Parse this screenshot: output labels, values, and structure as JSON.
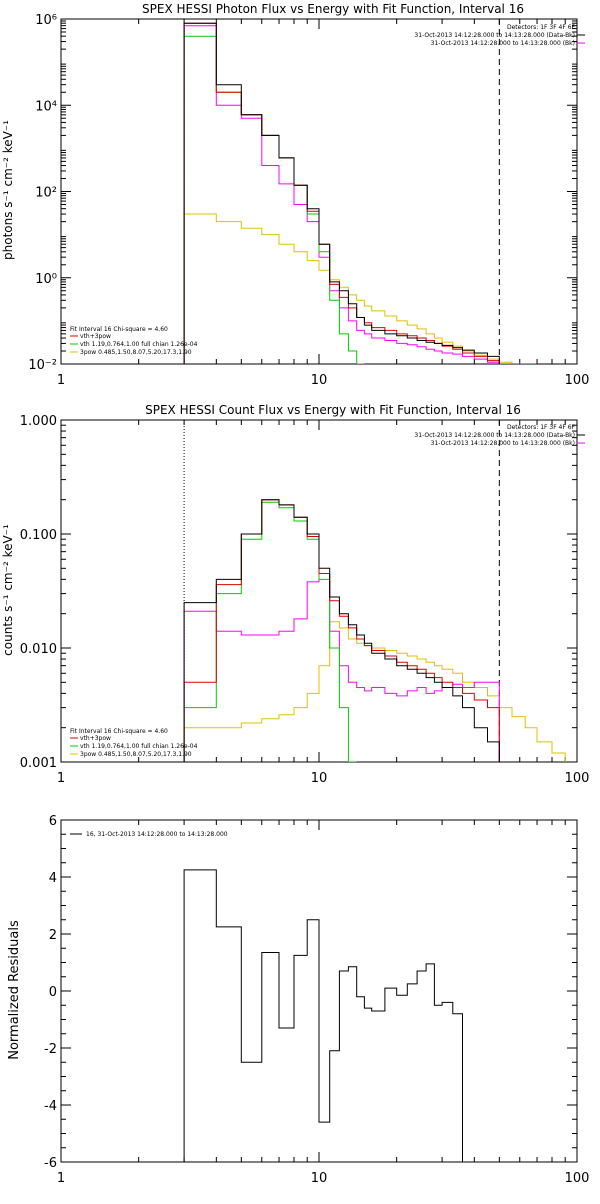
{
  "chart_data": [
    {
      "type": "line",
      "title": "SPEX HESSI Photon Flux vs Energy with Fit Function, Interval 16",
      "xlabel": "",
      "ylabel": "photons s⁻¹ cm⁻² keV⁻¹",
      "xscale": "log",
      "yscale": "log",
      "xlim": [
        1,
        100
      ],
      "ylim": [
        0.01,
        1000000
      ],
      "x_ticks": [
        1,
        10,
        100
      ],
      "x_tick_labels": [
        "1",
        "10",
        "100"
      ],
      "y_ticks": [
        0.01,
        1,
        100,
        10000,
        1000000
      ],
      "y_tick_labels": [
        "10⁻²",
        "10⁰",
        "10²",
        "10⁴",
        "10⁶"
      ],
      "header_lines": [
        "Detectors: 1F 3F 4F 6F",
        "31-Oct-2013 14:12:28.000 to 14:13:28.000 (Data-Bk)",
        "31-Oct-2013 14:12:28.000 to 14:13:28.000 (Bk)"
      ],
      "annotations": [
        "Fit Interval 16   Chi-square = 4.60",
        "vth+3pow",
        "vth 1.19,0.764,1.00  full chian 1.26e-04",
        "3pow 0.485,1.50,8.07,5.20,17.3,1.90"
      ],
      "vlines": [
        {
          "x": 3,
          "style": "dotted"
        },
        {
          "x": 50,
          "style": "dashed"
        }
      ],
      "energy_edges": [
        3,
        4,
        5,
        6,
        7,
        8,
        9,
        10,
        11,
        12,
        13,
        14,
        15,
        16,
        18,
        20,
        22,
        24,
        26,
        28,
        30,
        33,
        36,
        40,
        45,
        50,
        56,
        63,
        70
      ],
      "series": [
        {
          "name": "Data-Bk",
          "color": "#000000",
          "values": [
            800000,
            30000,
            6000,
            2000,
            600,
            140,
            40,
            6,
            0.8,
            0.5,
            0.25,
            0.12,
            0.08,
            0.06,
            0.05,
            0.045,
            0.04,
            0.035,
            0.032,
            0.03,
            0.027,
            0.024,
            0.021,
            0.018,
            0.015
          ]
        },
        {
          "name": "vth+3pow",
          "color": "#e00000",
          "values": [
            800000,
            20000,
            6000,
            2000,
            600,
            140,
            35,
            6,
            0.7,
            0.35,
            0.2,
            0.12,
            0.09,
            0.07,
            0.06,
            0.05,
            0.045,
            0.04,
            0.035,
            0.03,
            0.026,
            0.022,
            0.018,
            0.015,
            0.012,
            0.01,
            0.009,
            0.008
          ]
        },
        {
          "name": "vth",
          "color": "#00cc00",
          "values": [
            400000,
            20000,
            6000,
            2000,
            600,
            140,
            30,
            4,
            0.3,
            0.05,
            0.02,
            0.01
          ]
        },
        {
          "name": "Bk",
          "color": "#ff00ff",
          "values": [
            700000,
            10000,
            5000,
            400,
            150,
            50,
            20,
            3,
            0.5,
            0.2,
            0.1,
            0.06,
            0.05,
            0.04,
            0.035,
            0.03,
            0.028,
            0.025,
            0.022,
            0.02,
            0.018,
            0.017,
            0.015,
            0.013,
            0.011
          ]
        },
        {
          "name": "3pow",
          "color": "#e0c000",
          "values": [
            30,
            20,
            14,
            10,
            6,
            4,
            2.5,
            1.5,
            0.9,
            0.6,
            0.4,
            0.3,
            0.22,
            0.17,
            0.13,
            0.1,
            0.08,
            0.065,
            0.05,
            0.04,
            0.032,
            0.026,
            0.02,
            0.016,
            0.013,
            0.011,
            0.01,
            0.009
          ]
        }
      ]
    },
    {
      "type": "line",
      "title": "SPEX HESSI Count Flux vs Energy with Fit Function, Interval 16",
      "xlabel": "",
      "ylabel": "counts s⁻¹ cm⁻² keV⁻¹",
      "xscale": "log",
      "yscale": "log",
      "xlim": [
        1,
        100
      ],
      "ylim": [
        0.001,
        1
      ],
      "x_ticks": [
        1,
        10,
        100
      ],
      "x_tick_labels": [
        "1",
        "10",
        "100"
      ],
      "y_ticks": [
        0.001,
        0.01,
        0.1,
        1
      ],
      "y_tick_labels": [
        "0.001",
        "0.010",
        "0.100",
        "1.000"
      ],
      "header_lines": [
        "Detectors: 1F 3F 4F 6F",
        "31-Oct-2013 14:12:28.000 to 14:13:28.000 (Data-Bk)",
        "31-Oct-2013 14:12:28.000 to 14:13:28.000 (Bk)"
      ],
      "annotations": [
        "Fit Interval 16   Chi-square = 4.60",
        "vth+3pow",
        "vth 1.19,0.764,1.00  full chian 1.26e-04",
        "3pow 0.485,1.50,8.07,5.20,17.3,1.90"
      ],
      "vlines": [
        {
          "x": 3,
          "style": "dotted"
        },
        {
          "x": 50,
          "style": "dashed"
        }
      ],
      "energy_edges": [
        3,
        4,
        5,
        6,
        7,
        8,
        9,
        10,
        11,
        12,
        13,
        14,
        15,
        16,
        18,
        20,
        22,
        24,
        26,
        28,
        30,
        33,
        36,
        40,
        45,
        50,
        56,
        63,
        70,
        80,
        90
      ],
      "series": [
        {
          "name": "Data-Bk",
          "color": "#000000",
          "values": [
            0.025,
            0.04,
            0.1,
            0.2,
            0.18,
            0.14,
            0.1,
            0.05,
            0.028,
            0.02,
            0.016,
            0.013,
            0.011,
            0.009,
            0.008,
            0.007,
            0.0065,
            0.006,
            0.0055,
            0.005,
            0.0045,
            0.0038,
            0.003,
            0.002,
            0.0015
          ]
        },
        {
          "name": "vth+3pow",
          "color": "#e00000",
          "values": [
            0.005,
            0.036,
            0.1,
            0.2,
            0.18,
            0.14,
            0.095,
            0.045,
            0.026,
            0.019,
            0.015,
            0.012,
            0.0105,
            0.0095,
            0.0085,
            0.0075,
            0.007,
            0.0065,
            0.006,
            0.0055,
            0.005,
            0.0045,
            0.004,
            0.0035,
            0.003
          ]
        },
        {
          "name": "vth",
          "color": "#00cc00",
          "values": [
            0.003,
            0.03,
            0.09,
            0.19,
            0.17,
            0.13,
            0.09,
            0.04,
            0.01,
            0.003,
            0.001
          ]
        },
        {
          "name": "Bk",
          "color": "#ff00ff",
          "values": [
            0.021,
            0.014,
            0.013,
            0.013,
            0.014,
            0.018,
            0.038,
            0.045,
            0.014,
            0.007,
            0.005,
            0.0045,
            0.0042,
            0.0045,
            0.004,
            0.0038,
            0.0042,
            0.0045,
            0.004,
            0.0042,
            0.0045,
            0.0048,
            0.0045,
            0.005,
            0.005
          ]
        },
        {
          "name": "3pow",
          "color": "#e0c000",
          "values": [
            0.002,
            0.002,
            0.0022,
            0.0024,
            0.0026,
            0.003,
            0.004,
            0.007,
            0.017,
            0.015,
            0.012,
            0.011,
            0.0105,
            0.01,
            0.0095,
            0.009,
            0.0085,
            0.008,
            0.0075,
            0.007,
            0.0065,
            0.006,
            0.005,
            0.0045,
            0.0038,
            0.003,
            0.0025,
            0.002,
            0.0015,
            0.0012
          ]
        }
      ]
    },
    {
      "type": "line",
      "title": "",
      "xlabel": "",
      "ylabel": "Normalized Residuals",
      "xscale": "log",
      "yscale": "linear",
      "xlim": [
        1,
        100
      ],
      "ylim": [
        -6,
        6
      ],
      "x_ticks": [
        1,
        10,
        100
      ],
      "x_tick_labels": [
        "1",
        "10",
        "100"
      ],
      "y_ticks": [
        -6,
        -4,
        -2,
        0,
        2,
        4,
        6
      ],
      "y_tick_labels": [
        "-6",
        "-4",
        "-2",
        "0",
        "2",
        "4",
        "6"
      ],
      "legend": "16, 31-Oct-2013 14:12:28.000 to 14:13:28.000",
      "energy_edges": [
        3,
        4,
        5,
        6,
        7,
        8,
        9,
        10,
        11,
        12,
        13,
        14,
        15,
        16,
        18,
        20,
        22,
        24,
        26,
        28,
        30,
        33,
        36,
        40,
        45,
        50
      ],
      "series": [
        {
          "name": "16",
          "color": "#000000",
          "values": [
            4.25,
            2.25,
            -2.5,
            1.35,
            -1.3,
            1.25,
            2.5,
            -4.6,
            -2.1,
            0.7,
            0.85,
            -0.2,
            -0.6,
            -0.7,
            0.1,
            -0.15,
            0.25,
            0.7,
            0.95,
            -0.5,
            -0.4,
            -0.8
          ]
        }
      ]
    }
  ],
  "colors": {
    "background": "#ffffff",
    "axes": "#000000"
  }
}
